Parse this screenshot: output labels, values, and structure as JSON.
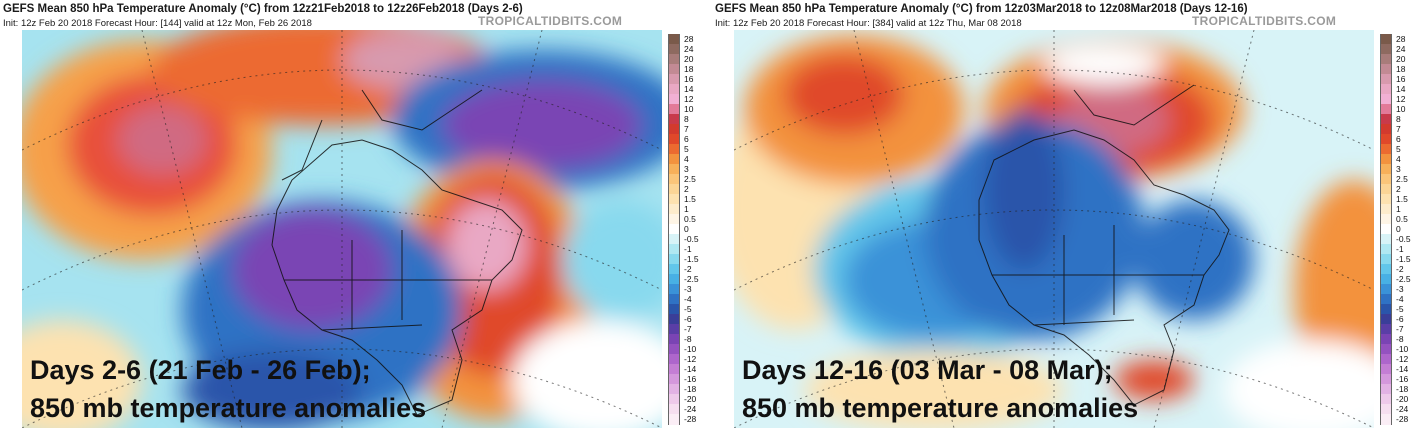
{
  "panels": [
    {
      "title": "GEFS Mean 850 hPa Temperature Anomaly (°C) from 12z21Feb2018 to 12z26Feb2018 (Days 2-6)",
      "init": "Init: 12z Feb 20 2018   Forecast Hour: [144]   valid at 12z Mon, Feb 26 2018",
      "brand": "TROPICALTIDBITS.COM",
      "overlay_line1": "Days 2-6 (21 Feb - 26 Feb);",
      "overlay_line2": "850 mb temperature anomalies"
    },
    {
      "title": "GEFS Mean 850 hPa Temperature Anomaly (°C) from 12z03Mar2018 to 12z08Mar2018 (Days 12-16)",
      "init": "Init: 12z Feb 20 2018   Forecast Hour: [384]   valid at 12z Thu, Mar 08 2018",
      "brand": "TROPICALTIDBITS.COM",
      "overlay_line1": "Days 12-16 (03 Mar - 08 Mar);",
      "overlay_line2": "850 mb temperature anomalies"
    }
  ],
  "colorbar": {
    "labels": [
      "28",
      "24",
      "20",
      "18",
      "16",
      "14",
      "12",
      "10",
      "8",
      "7",
      "6",
      "5",
      "4",
      "3",
      "2.5",
      "2",
      "1.5",
      "1",
      "0.5",
      "0",
      "-0.5",
      "-1",
      "-1.5",
      "-2",
      "-2.5",
      "-3",
      "-4",
      "-5",
      "-6",
      "-7",
      "-8",
      "-10",
      "-12",
      "-14",
      "-16",
      "-18",
      "-20",
      "-24",
      "-28"
    ],
    "colors": [
      "#7a5a4a",
      "#8e6a60",
      "#a87c7a",
      "#c28a94",
      "#d89aae",
      "#e9a8c4",
      "#f2b0d4",
      "#e27a98",
      "#c83a4a",
      "#d23a2e",
      "#e0482a",
      "#ec6a30",
      "#f3923e",
      "#f7b05a",
      "#fac57a",
      "#fbd596",
      "#fde2b0",
      "#fdeccc",
      "#fef5e6",
      "#ffffff",
      "#d8f3f7",
      "#b0e8f2",
      "#88d9ee",
      "#62c6ea",
      "#48b0e4",
      "#3a92d8",
      "#2f72c4",
      "#2a55aa",
      "#3a3e98",
      "#5a3ea6",
      "#7a44b4",
      "#9452c0",
      "#ae66cc",
      "#c47ed4",
      "#d498dc",
      "#e2b2e4",
      "#eecaea",
      "#f6dff0",
      "#fbeef6"
    ]
  }
}
